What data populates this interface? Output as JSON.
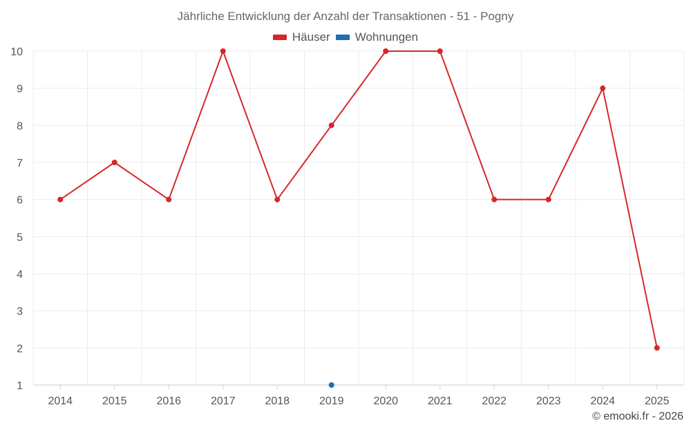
{
  "chart_data": {
    "type": "line",
    "title": "Jährliche Entwicklung der Anzahl der Transaktionen - 51 - Pogny",
    "categories": [
      "2014",
      "2015",
      "2016",
      "2017",
      "2018",
      "2019",
      "2020",
      "2021",
      "2022",
      "2023",
      "2024",
      "2025"
    ],
    "series": [
      {
        "name": "Häuser",
        "color": "#d62728",
        "values": [
          6,
          7,
          6,
          10,
          6,
          8,
          10,
          10,
          6,
          6,
          9,
          2
        ]
      },
      {
        "name": "Wohnungen",
        "color": "#1f6fb2",
        "values": [
          null,
          null,
          null,
          null,
          null,
          1,
          null,
          null,
          null,
          null,
          null,
          null
        ]
      }
    ],
    "yticks": [
      "1",
      "2",
      "3",
      "4",
      "5",
      "6",
      "7",
      "8",
      "9",
      "10"
    ],
    "ylim": [
      1,
      10
    ],
    "xlabel": "",
    "ylabel": "",
    "grid": true,
    "legend_position": "top"
  },
  "credit": "© emooki.fr - 2026"
}
